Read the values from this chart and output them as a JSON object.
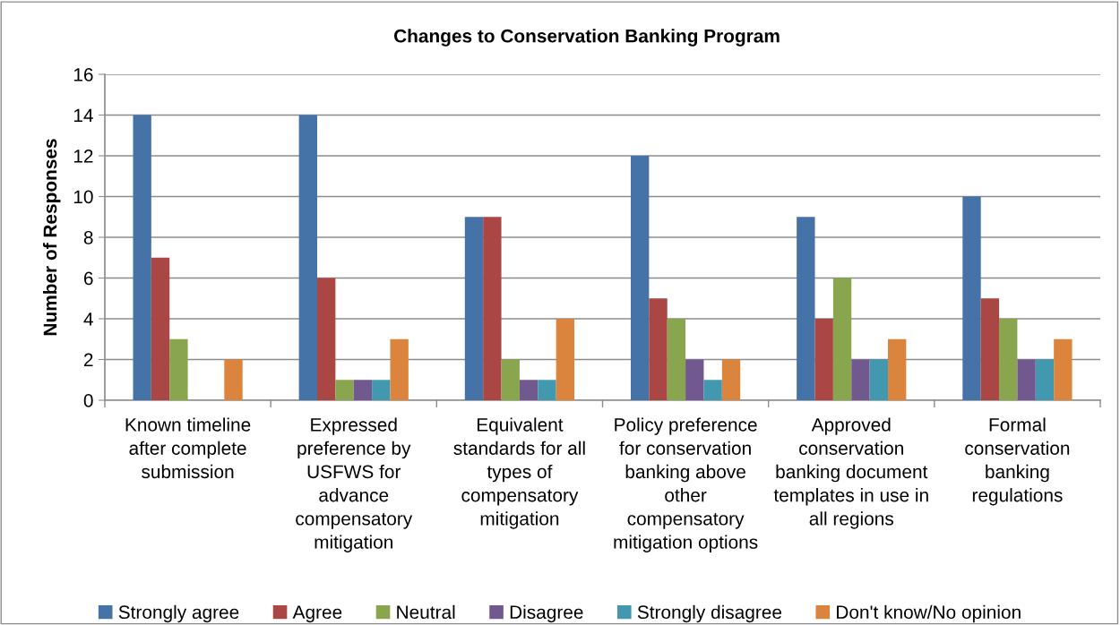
{
  "chart_data": {
    "type": "bar",
    "title": "Changes to Conservation Banking Program",
    "ylabel": "Number of Responses",
    "categories": [
      "Known timeline\nafter complete\nsubmission",
      "Expressed\npreference by\nUSFWS for\nadvance\ncompensatory\nmitigation",
      "Equivalent\nstandards for all\ntypes of\ncompensatory\nmitigation",
      "Policy preference\nfor conservation\nbanking above\nother\ncompensatory\nmitigation options",
      "Approved\nconservation\nbanking document\ntemplates in use in\nall regions",
      "Formal\nconservation\nbanking\nregulations"
    ],
    "series": [
      {
        "name": "Strongly agree",
        "color": "#4572a7",
        "values": [
          14,
          14,
          9,
          12,
          9,
          10
        ]
      },
      {
        "name": "Agree",
        "color": "#aa4643",
        "values": [
          7,
          6,
          9,
          5,
          4,
          5
        ]
      },
      {
        "name": "Neutral",
        "color": "#89a54e",
        "values": [
          3,
          1,
          2,
          4,
          6,
          4
        ]
      },
      {
        "name": "Disagree",
        "color": "#71588f",
        "values": [
          null,
          1,
          1,
          2,
          2,
          2
        ]
      },
      {
        "name": "Strongly disagree",
        "color": "#4198af",
        "values": [
          null,
          1,
          1,
          1,
          2,
          2
        ]
      },
      {
        "name": "Don't know/No opinion",
        "color": "#db843d",
        "values": [
          2,
          3,
          4,
          2,
          3,
          3
        ]
      }
    ],
    "ylim": [
      0,
      16
    ],
    "yticks": [
      0,
      2,
      4,
      6,
      8,
      10,
      12,
      14,
      16
    ],
    "grid": "y",
    "legend": "bottom"
  }
}
